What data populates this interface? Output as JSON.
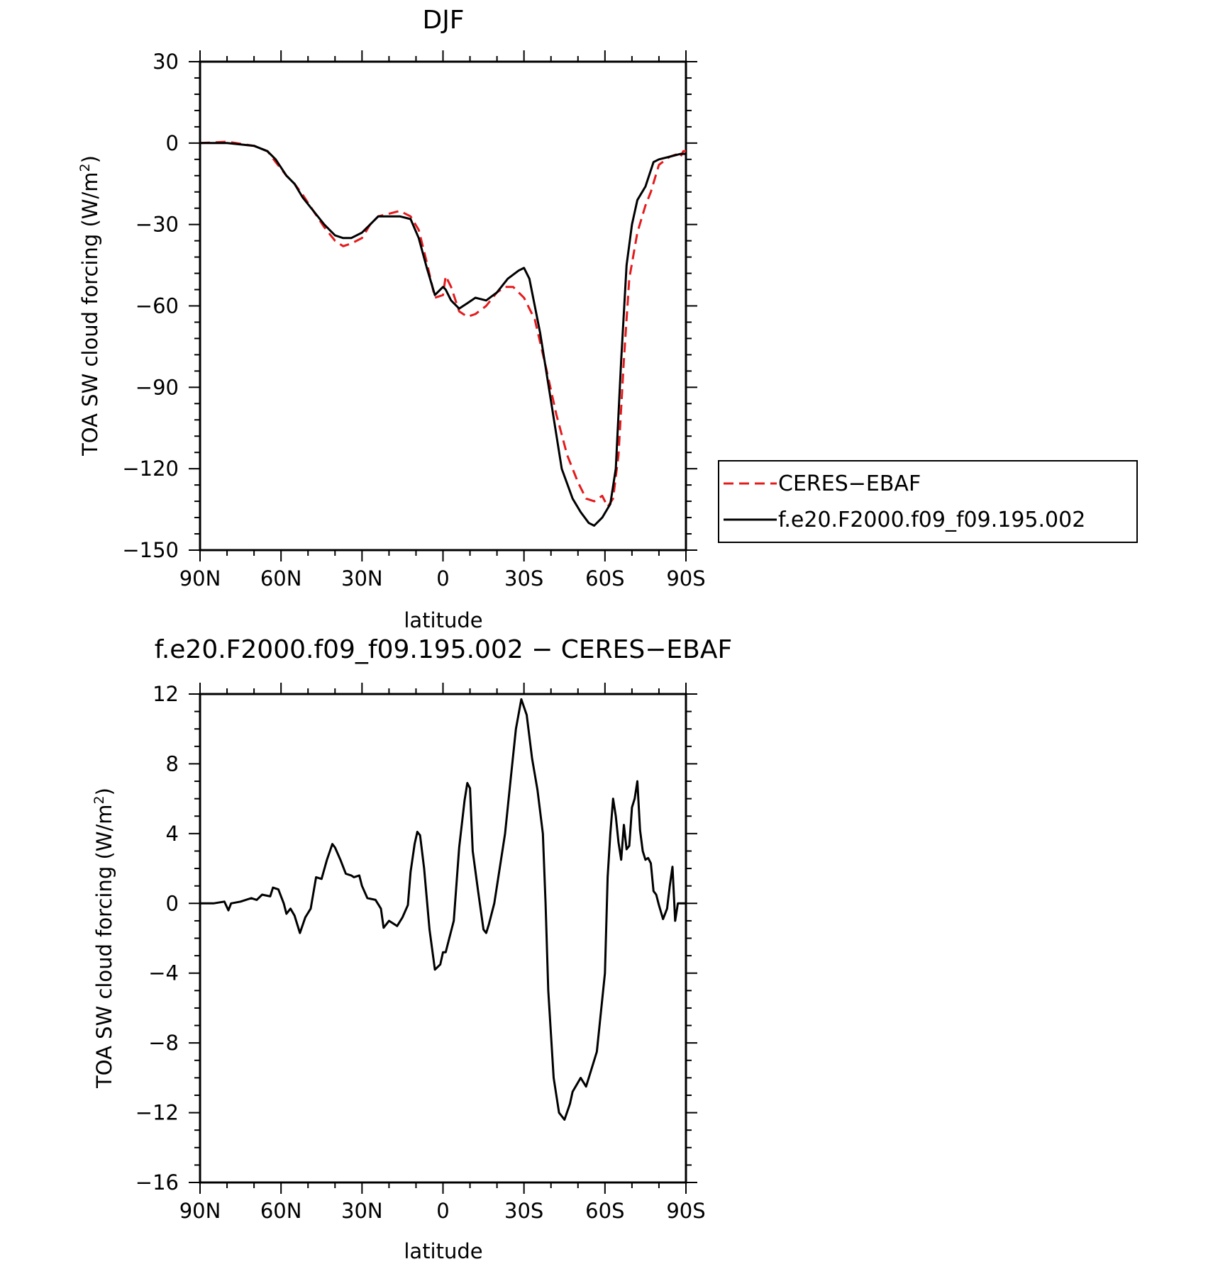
{
  "chart_data": [
    {
      "type": "line",
      "title": "DJF",
      "xlabel": "latitude",
      "ylabel_main": "TOA SW cloud forcing (W/m",
      "ylabel_sup": "2",
      "ylabel_close": ")",
      "xlim": [
        90,
        -90
      ],
      "ylim": [
        -150,
        30
      ],
      "x_ticks": [
        90,
        60,
        30,
        0,
        -30,
        -60,
        -90
      ],
      "x_tick_labels": [
        "90N",
        "60N",
        "30N",
        "0",
        "30S",
        "60S",
        "90S"
      ],
      "y_ticks": [
        30,
        0,
        -30,
        -60,
        -90,
        -120,
        -150
      ],
      "y_tick_labels": [
        "30",
        "0",
        "−30",
        "−60",
        "−90",
        "−120",
        "−150"
      ],
      "legend_position": "right",
      "series": [
        {
          "name": "CERES−EBAF",
          "color": "#e41a1c",
          "dash": "dashed",
          "points": [
            [
              90,
              0
            ],
            [
              80,
              0.5
            ],
            [
              70,
              -1
            ],
            [
              65,
              -3
            ],
            [
              62,
              -7
            ],
            [
              58,
              -12
            ],
            [
              55,
              -15
            ],
            [
              52,
              -19
            ],
            [
              48,
              -25
            ],
            [
              44,
              -31
            ],
            [
              40,
              -36
            ],
            [
              37,
              -38
            ],
            [
              34,
              -37
            ],
            [
              30,
              -35
            ],
            [
              27,
              -30
            ],
            [
              24,
              -27
            ],
            [
              20,
              -26
            ],
            [
              16,
              -25
            ],
            [
              12,
              -27
            ],
            [
              9,
              -32
            ],
            [
              6,
              -44
            ],
            [
              3,
              -57
            ],
            [
              0,
              -56
            ],
            [
              -1,
              -49
            ],
            [
              -3,
              -53
            ],
            [
              -6,
              -62
            ],
            [
              -9,
              -64
            ],
            [
              -12,
              -63
            ],
            [
              -16,
              -60
            ],
            [
              -20,
              -55
            ],
            [
              -23,
              -53
            ],
            [
              -26,
              -53
            ],
            [
              -30,
              -57
            ],
            [
              -34,
              -65
            ],
            [
              -38,
              -82
            ],
            [
              -42,
              -100
            ],
            [
              -46,
              -115
            ],
            [
              -50,
              -125
            ],
            [
              -53,
              -131
            ],
            [
              -56,
              -132
            ],
            [
              -59,
              -130
            ],
            [
              -61,
              -134
            ],
            [
              -63,
              -131
            ],
            [
              -65,
              -115
            ],
            [
              -67,
              -80
            ],
            [
              -69,
              -50
            ],
            [
              -72,
              -33
            ],
            [
              -75,
              -23
            ],
            [
              -77,
              -18
            ],
            [
              -80,
              -8
            ],
            [
              -84,
              -5
            ],
            [
              -87,
              -4
            ],
            [
              -88,
              -5
            ],
            [
              -89,
              -3
            ],
            [
              -90,
              -3
            ]
          ]
        },
        {
          "name": "f.e20.F2000.f09_f09.195.002",
          "color": "#000000",
          "dash": "solid",
          "points": [
            [
              90,
              0
            ],
            [
              80,
              0
            ],
            [
              70,
              -1
            ],
            [
              65,
              -3
            ],
            [
              62,
              -6
            ],
            [
              58,
              -12
            ],
            [
              55,
              -15
            ],
            [
              52,
              -20
            ],
            [
              48,
              -25
            ],
            [
              44,
              -30
            ],
            [
              40,
              -34
            ],
            [
              37,
              -35
            ],
            [
              34,
              -35
            ],
            [
              30,
              -33
            ],
            [
              27,
              -30
            ],
            [
              24,
              -27
            ],
            [
              20,
              -27
            ],
            [
              16,
              -27
            ],
            [
              12,
              -28
            ],
            [
              9,
              -35
            ],
            [
              6,
              -46
            ],
            [
              3,
              -56
            ],
            [
              0,
              -53
            ],
            [
              -1,
              -54
            ],
            [
              -3,
              -58
            ],
            [
              -6,
              -61
            ],
            [
              -9,
              -59
            ],
            [
              -12,
              -57
            ],
            [
              -16,
              -58
            ],
            [
              -20,
              -55
            ],
            [
              -24,
              -50
            ],
            [
              -28,
              -47
            ],
            [
              -30,
              -46
            ],
            [
              -32,
              -50
            ],
            [
              -36,
              -70
            ],
            [
              -40,
              -95
            ],
            [
              -44,
              -120
            ],
            [
              -48,
              -131
            ],
            [
              -51,
              -136
            ],
            [
              -54,
              -140
            ],
            [
              -56,
              -141
            ],
            [
              -59,
              -138
            ],
            [
              -62,
              -133
            ],
            [
              -64,
              -120
            ],
            [
              -66,
              -80
            ],
            [
              -68,
              -45
            ],
            [
              -70,
              -30
            ],
            [
              -72,
              -21
            ],
            [
              -75,
              -16
            ],
            [
              -78,
              -7
            ],
            [
              -80,
              -6
            ],
            [
              -84,
              -5
            ],
            [
              -88,
              -4
            ],
            [
              -90,
              -4
            ]
          ]
        }
      ]
    },
    {
      "type": "line",
      "title": "f.e20.F2000.f09_f09.195.002 − CERES−EBAF",
      "xlabel": "latitude",
      "ylabel_main": "TOA SW cloud forcing (W/m",
      "ylabel_sup": "2",
      "ylabel_close": ")",
      "xlim": [
        90,
        -90
      ],
      "ylim": [
        -16,
        12
      ],
      "x_ticks": [
        90,
        60,
        30,
        0,
        -30,
        -60,
        -90
      ],
      "x_tick_labels": [
        "90N",
        "60N",
        "30N",
        "0",
        "30S",
        "60S",
        "90S"
      ],
      "y_ticks": [
        12,
        8,
        4,
        0,
        -4,
        -8,
        -12,
        -16
      ],
      "y_tick_labels": [
        "12",
        "8",
        "4",
        "0",
        "−4",
        "−8",
        "−12",
        "−16"
      ],
      "series": [
        {
          "color": "#000000",
          "dash": "solid",
          "points": [
            [
              90,
              0
            ],
            [
              85,
              0
            ],
            [
              81,
              0.1
            ],
            [
              79.5,
              -0.4
            ],
            [
              78.5,
              0
            ],
            [
              75,
              0.1
            ],
            [
              71,
              0.3
            ],
            [
              69,
              0.2
            ],
            [
              67,
              0.5
            ],
            [
              64,
              0.4
            ],
            [
              63,
              0.9
            ],
            [
              61,
              0.8
            ],
            [
              59,
              0
            ],
            [
              58,
              -0.6
            ],
            [
              56.5,
              -0.3
            ],
            [
              55,
              -0.7
            ],
            [
              53,
              -1.7
            ],
            [
              51,
              -0.8
            ],
            [
              49,
              -0.3
            ],
            [
              47,
              1.5
            ],
            [
              45,
              1.4
            ],
            [
              43,
              2.5
            ],
            [
              41,
              3.4
            ],
            [
              40,
              3.2
            ],
            [
              38,
              2.5
            ],
            [
              36,
              1.7
            ],
            [
              34,
              1.6
            ],
            [
              33,
              1.5
            ],
            [
              31,
              1.6
            ],
            [
              30,
              1
            ],
            [
              28,
              0.3
            ],
            [
              25,
              0.2
            ],
            [
              23,
              -0.3
            ],
            [
              22,
              -1.4
            ],
            [
              20,
              -1
            ],
            [
              18,
              -1.2
            ],
            [
              17,
              -1.3
            ],
            [
              15,
              -0.8
            ],
            [
              13,
              -0.1
            ],
            [
              12,
              1.8
            ],
            [
              10.5,
              3.4
            ],
            [
              9.5,
              4.1
            ],
            [
              8.5,
              3.9
            ],
            [
              7,
              2
            ],
            [
              5,
              -1.5
            ],
            [
              3,
              -3.8
            ],
            [
              1,
              -3.5
            ],
            [
              0,
              -2.8
            ],
            [
              -1,
              -2.8
            ],
            [
              -2,
              -2.2
            ],
            [
              -4,
              -1
            ],
            [
              -6,
              3.2
            ],
            [
              -8,
              5.9
            ],
            [
              -9,
              6.9
            ],
            [
              -10,
              6.6
            ],
            [
              -11,
              3
            ],
            [
              -13,
              0.7
            ],
            [
              -15,
              -1.5
            ],
            [
              -16,
              -1.7
            ],
            [
              -17,
              -1.2
            ],
            [
              -19,
              0
            ],
            [
              -21,
              2
            ],
            [
              -23,
              4
            ],
            [
              -25,
              7
            ],
            [
              -27,
              10
            ],
            [
              -29,
              11.7
            ],
            [
              -31,
              10.8
            ],
            [
              -33,
              8.3
            ],
            [
              -35,
              6.5
            ],
            [
              -37,
              4
            ],
            [
              -38,
              0
            ],
            [
              -39,
              -5
            ],
            [
              -41,
              -10
            ],
            [
              -43,
              -12
            ],
            [
              -45,
              -12.4
            ],
            [
              -47,
              -11.5
            ],
            [
              -48,
              -10.8
            ],
            [
              -51,
              -10
            ],
            [
              -53,
              -10.5
            ],
            [
              -54,
              -10
            ],
            [
              -56,
              -9
            ],
            [
              -57,
              -8.5
            ],
            [
              -58,
              -7
            ],
            [
              -60,
              -4
            ],
            [
              -61,
              1.5
            ],
            [
              -62,
              4
            ],
            [
              -63,
              6
            ],
            [
              -64,
              5
            ],
            [
              -65,
              3.5
            ],
            [
              -66,
              2.5
            ],
            [
              -67,
              4.5
            ],
            [
              -68,
              3.1
            ],
            [
              -69,
              3.3
            ],
            [
              -70,
              5.5
            ],
            [
              -71,
              6
            ],
            [
              -72,
              7
            ],
            [
              -73,
              4.2
            ],
            [
              -74,
              3
            ],
            [
              -75,
              2.5
            ],
            [
              -76,
              2.6
            ],
            [
              -77,
              2.3
            ],
            [
              -78,
              0.7
            ],
            [
              -79,
              0.5
            ],
            [
              -80,
              -0.1
            ],
            [
              -81.5,
              -0.9
            ],
            [
              -83,
              -0.3
            ],
            [
              -84,
              1
            ],
            [
              -85,
              2.1
            ],
            [
              -86,
              -1
            ],
            [
              -87,
              0
            ],
            [
              -90,
              0
            ]
          ]
        }
      ]
    }
  ]
}
